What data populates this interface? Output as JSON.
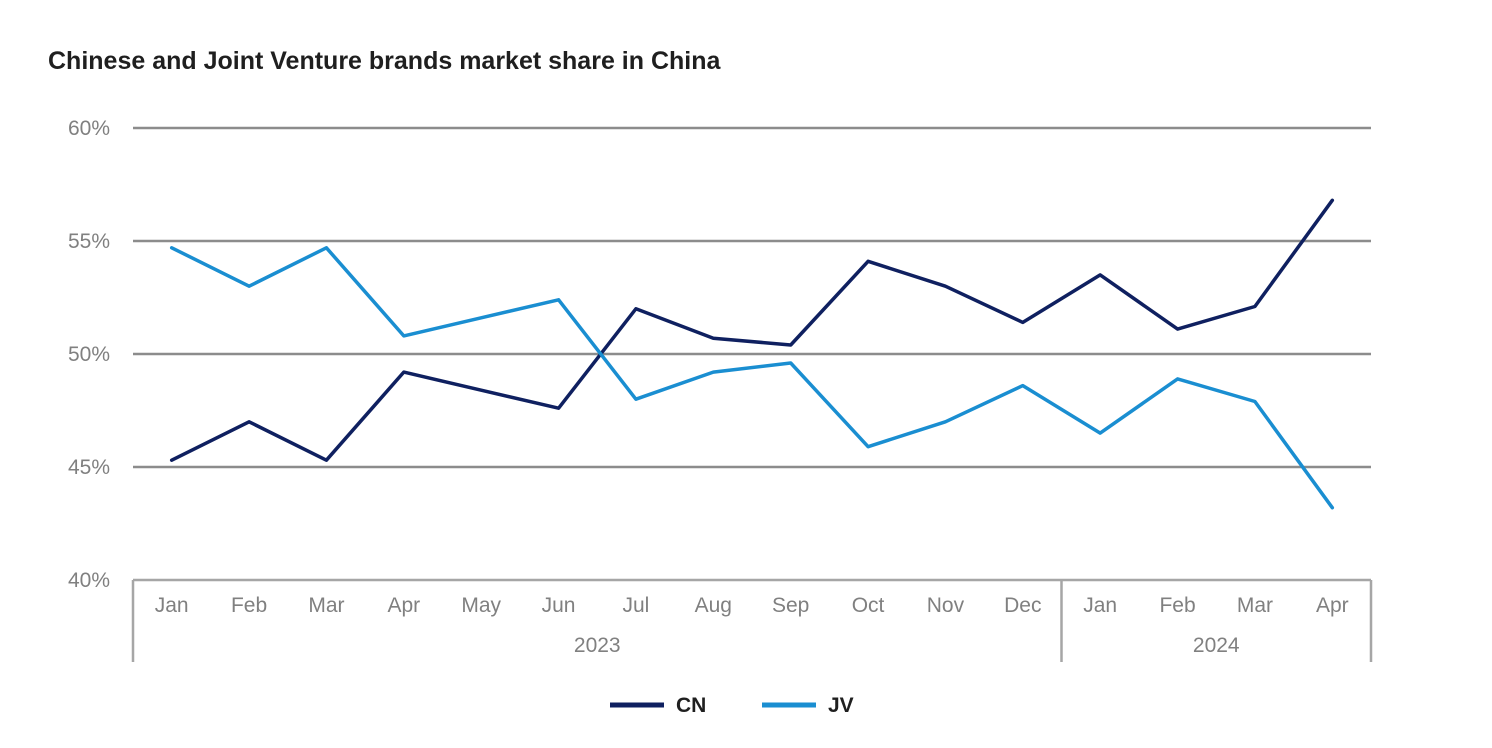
{
  "chart_data": {
    "type": "line",
    "title": "Chinese and Joint Venture brands market share in China",
    "xlabel": "",
    "ylabel": "",
    "categories": [
      "Jan",
      "Feb",
      "Mar",
      "Apr",
      "May",
      "Jun",
      "Jul",
      "Aug",
      "Sep",
      "Oct",
      "Nov",
      "Dec",
      "Jan",
      "Feb",
      "Mar",
      "Apr"
    ],
    "groups": [
      {
        "label": "2023",
        "count": 12
      },
      {
        "label": "2024",
        "count": 4
      }
    ],
    "ylim": [
      40,
      60
    ],
    "yticks": [
      40,
      45,
      50,
      55,
      60
    ],
    "ytick_labels": [
      "40%",
      "45%",
      "50%",
      "55%",
      "60%"
    ],
    "grid": true,
    "legend_position": "bottom-center",
    "series": [
      {
        "name": "CN",
        "color": "#0f2060",
        "values": [
          45.3,
          47.0,
          45.3,
          49.2,
          48.4,
          47.6,
          52.0,
          50.7,
          50.4,
          54.1,
          53.0,
          51.4,
          53.5,
          51.1,
          52.1,
          56.8
        ]
      },
      {
        "name": "JV",
        "color": "#1a8ed1",
        "values": [
          54.7,
          53.0,
          54.7,
          50.8,
          51.6,
          52.4,
          48.0,
          49.2,
          49.6,
          45.9,
          47.0,
          48.6,
          46.5,
          48.9,
          47.9,
          43.2
        ]
      }
    ]
  }
}
